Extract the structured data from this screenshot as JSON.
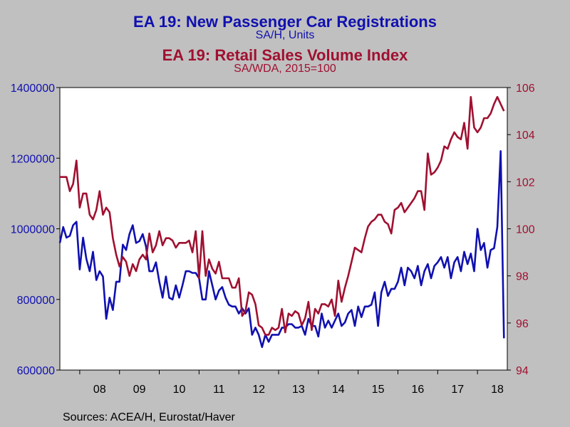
{
  "chart_data": {
    "type": "line",
    "titles": [
      {
        "title": "EA 19: New Passenger Car Registrations",
        "subtitle": "SA/H, Units",
        "color": "#1010b0"
      },
      {
        "title": "EA 19: Retail Sales Volume Index",
        "subtitle": "SA/WDA, 2015=100",
        "color": "#a01030"
      }
    ],
    "x_ticks": [
      "08",
      "09",
      "10",
      "11",
      "12",
      "13",
      "14",
      "15",
      "16",
      "17",
      "18"
    ],
    "x_range": [
      2007.5,
      2018.75
    ],
    "left_axis": {
      "ticks": [
        "600000",
        "800000",
        "1000000",
        "1200000",
        "1400000"
      ],
      "ylim": [
        600000,
        1400000
      ],
      "color": "#1010b0"
    },
    "right_axis": {
      "ticks": [
        "94",
        "96",
        "98",
        "100",
        "102",
        "104",
        "106"
      ],
      "ylim": [
        94,
        106
      ],
      "color": "#a01030"
    },
    "grid": false,
    "series": [
      {
        "axis": "left",
        "color": "#1010b0",
        "start": 2007.5,
        "step": 0.0833333,
        "values": [
          960000,
          1005000,
          975000,
          980000,
          1010000,
          1020000,
          885000,
          975000,
          915000,
          880000,
          935000,
          855000,
          880000,
          865000,
          745000,
          805000,
          770000,
          850000,
          850000,
          955000,
          940000,
          985000,
          1010000,
          960000,
          965000,
          985000,
          950000,
          880000,
          880000,
          905000,
          850000,
          805000,
          865000,
          805000,
          800000,
          840000,
          805000,
          840000,
          880000,
          880000,
          875000,
          875000,
          860000,
          800000,
          800000,
          880000,
          840000,
          800000,
          825000,
          835000,
          805000,
          785000,
          780000,
          780000,
          760000,
          775000,
          760000,
          775000,
          700000,
          720000,
          700000,
          665000,
          700000,
          680000,
          700000,
          700000,
          700000,
          720000,
          720000,
          730000,
          730000,
          720000,
          720000,
          725000,
          700000,
          745000,
          725000,
          725000,
          695000,
          760000,
          720000,
          740000,
          720000,
          740000,
          760000,
          725000,
          735000,
          760000,
          770000,
          725000,
          780000,
          750000,
          780000,
          780000,
          785000,
          820000,
          725000,
          820000,
          850000,
          810000,
          830000,
          830000,
          850000,
          890000,
          840000,
          890000,
          880000,
          860000,
          895000,
          840000,
          880000,
          900000,
          860000,
          895000,
          905000,
          920000,
          890000,
          920000,
          860000,
          905000,
          920000,
          880000,
          935000,
          900000,
          930000,
          880000,
          1000000,
          940000,
          960000,
          890000,
          940000,
          945000,
          1005000,
          1220000,
          690000
        ]
      },
      {
        "axis": "right",
        "color": "#a01030",
        "start": 2007.5,
        "step": 0.0833333,
        "values": [
          102.2,
          102.2,
          102.2,
          101.6,
          101.9,
          102.9,
          100.9,
          101.5,
          101.5,
          100.6,
          100.4,
          100.8,
          101.6,
          100.6,
          100.9,
          100.7,
          99.6,
          98.9,
          98.4,
          98.8,
          98.6,
          98.0,
          98.5,
          98.2,
          98.7,
          98.9,
          98.7,
          99.8,
          99.0,
          99.3,
          99.9,
          99.3,
          99.6,
          99.6,
          99.5,
          99.2,
          99.4,
          99.4,
          99.4,
          99.5,
          99.0,
          99.9,
          97.9,
          99.9,
          98.0,
          98.7,
          98.3,
          98.1,
          98.6,
          97.9,
          97.9,
          97.9,
          97.5,
          97.5,
          97.9,
          96.3,
          96.5,
          97.3,
          97.2,
          96.8,
          95.9,
          95.8,
          95.5,
          95.5,
          95.8,
          95.7,
          95.8,
          96.6,
          95.6,
          96.4,
          96.3,
          96.5,
          96.4,
          95.9,
          96.2,
          96.9,
          95.7,
          96.6,
          96.4,
          96.8,
          96.8,
          96.7,
          97.0,
          96.3,
          97.8,
          96.9,
          97.5,
          98.0,
          98.6,
          99.2,
          99.1,
          99.0,
          99.6,
          100.1,
          100.3,
          100.4,
          100.6,
          100.6,
          100.3,
          100.2,
          99.8,
          100.8,
          100.9,
          101.1,
          100.7,
          100.9,
          101.1,
          101.3,
          101.6,
          101.6,
          100.8,
          103.2,
          102.3,
          102.4,
          102.6,
          102.9,
          103.5,
          103.4,
          103.8,
          104.1,
          103.9,
          103.8,
          104.5,
          103.4,
          105.6,
          104.3,
          104.1,
          104.3,
          104.7,
          104.7,
          104.9,
          105.3,
          105.6,
          105.3,
          105.0
        ]
      }
    ]
  },
  "source": "Sources:  ACEA/H, Eurostat/Haver"
}
